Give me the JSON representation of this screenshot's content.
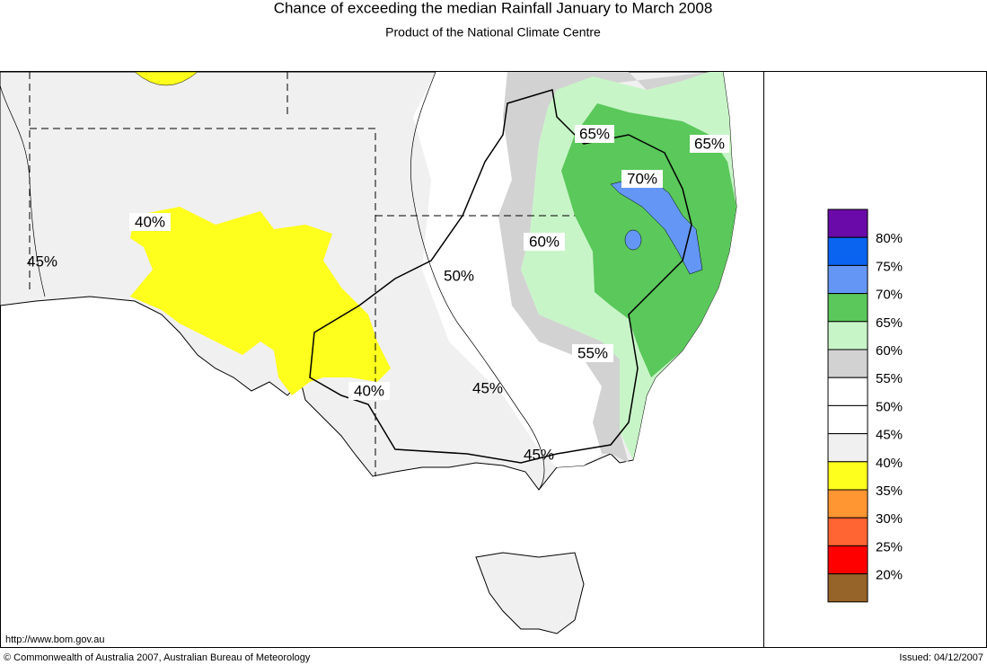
{
  "header": {
    "title": "Chance of exceeding the median Rainfall January to March 2008",
    "subtitle": "Product of the National Climate Centre"
  },
  "map": {
    "labels": [
      "65%",
      "65%",
      "70%",
      "40%",
      "45%",
      "60%",
      "50%",
      "55%",
      "45%",
      "40%",
      "45%"
    ]
  },
  "legend": {
    "colors": [
      "#6a0aa8",
      "#0a64f0",
      "#6496f5",
      "#5ac85a",
      "#c8f5c8",
      "#d2d2d2",
      "#ffffff",
      "#ffffff",
      "#f0f0f0",
      "#ffff1e",
      "#ff9632",
      "#ff6432",
      "#ff0000",
      "#966428"
    ],
    "labels": [
      "80%",
      "75%",
      "70%",
      "65%",
      "60%",
      "55%",
      "50%",
      "45%",
      "40%",
      "35%",
      "30%",
      "25%",
      "20%"
    ]
  },
  "footer": {
    "url": "http://www.bom.gov.au",
    "copyright": "© Commonwealth of Australia 2007, Australian Bureau of Meteorology",
    "issued": "Issued: 04/12/2007"
  }
}
